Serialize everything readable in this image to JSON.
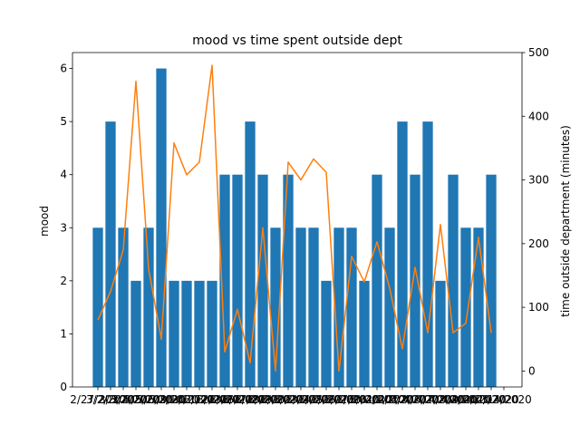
{
  "chart_data": {
    "type": "bar+line",
    "title": "mood vs time spent outside dept",
    "categories": [
      "2/27/2020",
      "3/2/2020",
      "3/3/2020",
      "3/4/2020",
      "3/5/2020",
      "3/6/2020",
      "3/9/2020",
      "3/10/2020",
      "3/11/2020",
      "3/12/2020",
      "3/13/2020",
      "3/16/2020",
      "3/17/2020",
      "3/18/2020",
      "3/19/2020",
      "3/20/2020",
      "3/23/2020",
      "3/24/2020",
      "3/25/2020",
      "3/26/2020",
      "3/27/2020",
      "3/30/2020",
      "3/31/2020",
      "4/1/2020",
      "4/2/2020",
      "4/3/2020",
      "4/6/2020",
      "4/7/2020",
      "4/8/2020",
      "4/9/2020",
      "4/10/2020",
      "4/13/2020",
      "4/14/2020"
    ],
    "series": [
      {
        "axis": "left",
        "kind": "bar",
        "color": "#1f77b4",
        "values": [
          3,
          5,
          3,
          2,
          3,
          6,
          2,
          2,
          2,
          2,
          4,
          4,
          5,
          4,
          3,
          4,
          3,
          3,
          2,
          3,
          3,
          2,
          4,
          3,
          5,
          4,
          5,
          2,
          4,
          3,
          3,
          4,
          0
        ]
      },
      {
        "axis": "right",
        "kind": "line",
        "color": "#ff7f0e",
        "values": [
          80,
          125,
          190,
          455,
          160,
          50,
          358,
          308,
          328,
          480,
          30,
          97,
          13,
          225,
          0,
          328,
          300,
          333,
          312,
          0,
          180,
          140,
          203,
          130,
          35,
          163,
          60,
          230,
          60,
          75,
          210,
          60,
          null
        ]
      }
    ],
    "ylabel": "mood",
    "y2label": "time outside department (minutes)",
    "ylim": [
      0,
      6.3
    ],
    "y2lim": [
      -25,
      500
    ],
    "yticks": [
      "0",
      "1",
      "2",
      "3",
      "4",
      "5",
      "6"
    ],
    "y2ticks": [
      "0",
      "100",
      "200",
      "300",
      "400",
      "500"
    ],
    "grid": false
  }
}
